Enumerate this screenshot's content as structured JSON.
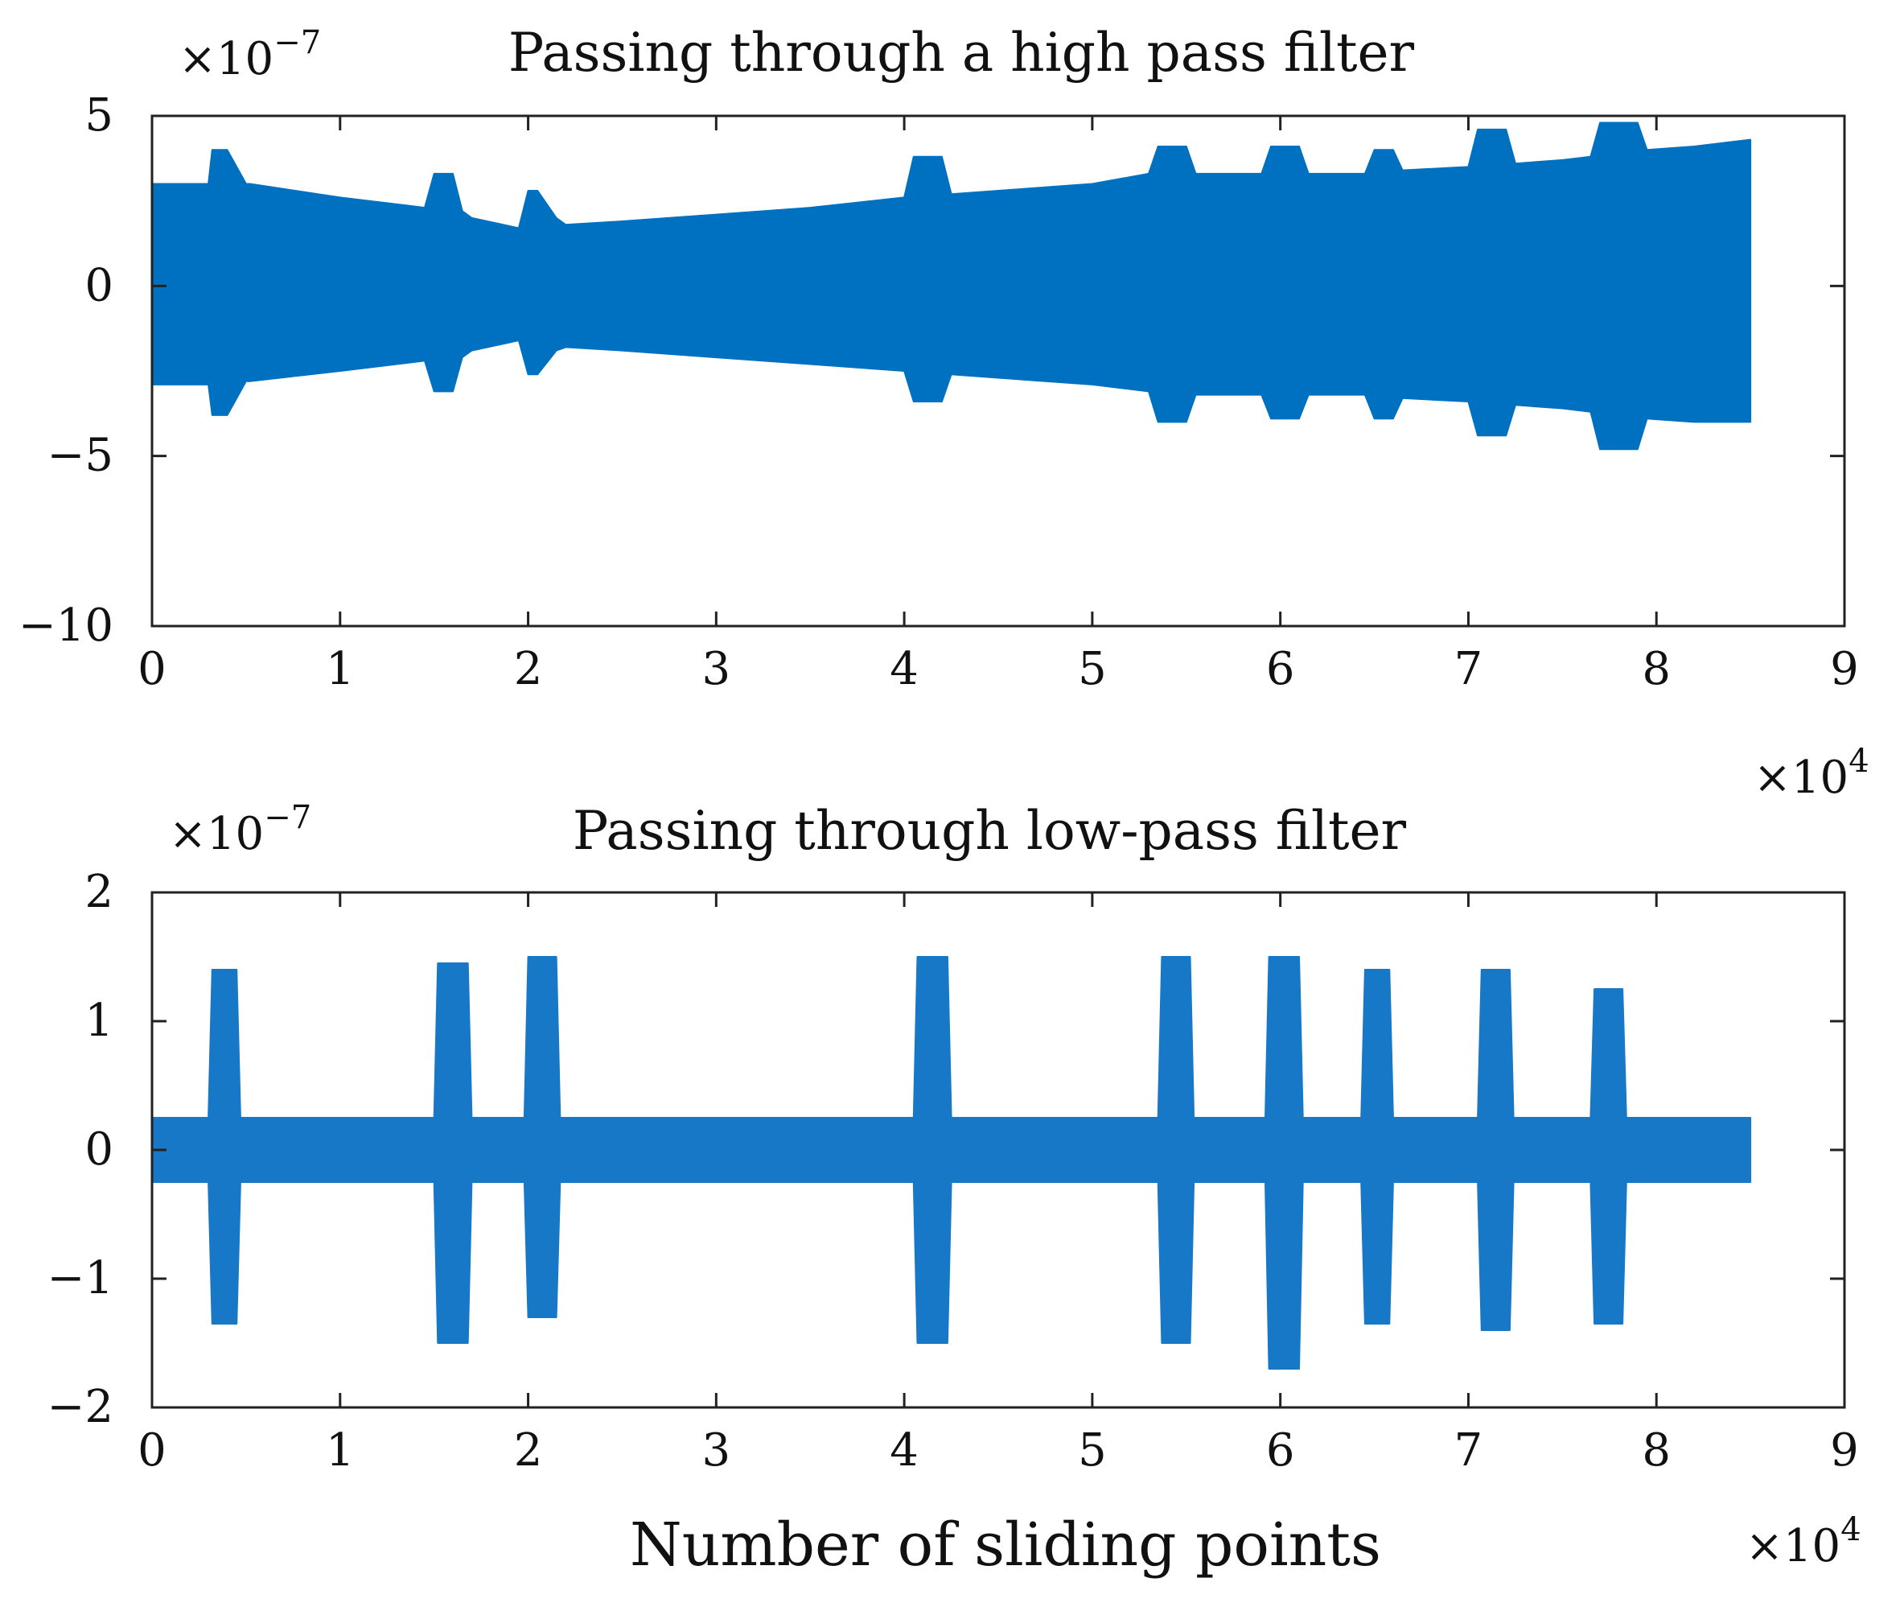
{
  "chart_data": [
    {
      "type": "area",
      "title": "Passing through a high pass filter",
      "xlabel": "",
      "ylabel": "",
      "xlim": [
        0,
        9
      ],
      "ylim": [
        -10,
        5
      ],
      "x_ticks": [
        "0",
        "1",
        "2",
        "3",
        "4",
        "5",
        "6",
        "7",
        "8",
        "9"
      ],
      "y_ticks": [
        "5",
        "0",
        "−5",
        "−10"
      ],
      "x_multiplier": {
        "base": "×10",
        "exp": "4"
      },
      "y_multiplier": {
        "base": "×10",
        "exp": "−7"
      },
      "color": "#0070C0",
      "series": [
        {
          "x": [
            0.0,
            0.3,
            0.32,
            0.4,
            0.5,
            0.52,
            1.0,
            1.45,
            1.5,
            1.6,
            1.65,
            1.7,
            1.95,
            2.0,
            2.05,
            2.15,
            2.2,
            2.5,
            3.0,
            3.5,
            4.0,
            4.05,
            4.2,
            4.25,
            4.5,
            5.0,
            5.3,
            5.35,
            5.5,
            5.55,
            5.9,
            5.95,
            6.1,
            6.15,
            6.45,
            6.5,
            6.6,
            6.65,
            7.0,
            7.05,
            7.2,
            7.25,
            7.5,
            7.65,
            7.7,
            7.9,
            7.95,
            8.2,
            8.5
          ],
          "upper": [
            3.0,
            3.0,
            4.0,
            4.0,
            3.0,
            3.0,
            2.6,
            2.3,
            3.3,
            3.3,
            2.2,
            2.0,
            1.7,
            2.8,
            2.8,
            2.0,
            1.8,
            1.9,
            2.1,
            2.3,
            2.6,
            3.8,
            3.8,
            2.7,
            2.8,
            3.0,
            3.3,
            4.1,
            4.1,
            3.3,
            3.3,
            4.1,
            4.1,
            3.3,
            3.3,
            4.0,
            4.0,
            3.4,
            3.5,
            4.6,
            4.6,
            3.6,
            3.7,
            3.8,
            4.8,
            4.8,
            4.0,
            4.1,
            4.3
          ],
          "lower": [
            -2.9,
            -2.9,
            -3.8,
            -3.8,
            -2.8,
            -2.8,
            -2.5,
            -2.2,
            -3.1,
            -3.1,
            -2.1,
            -1.9,
            -1.6,
            -2.6,
            -2.6,
            -1.9,
            -1.8,
            -1.9,
            -2.1,
            -2.3,
            -2.5,
            -3.4,
            -3.4,
            -2.6,
            -2.7,
            -2.9,
            -3.1,
            -4.0,
            -4.0,
            -3.2,
            -3.2,
            -3.9,
            -3.9,
            -3.2,
            -3.2,
            -3.9,
            -3.9,
            -3.3,
            -3.4,
            -4.4,
            -4.4,
            -3.5,
            -3.6,
            -3.7,
            -4.8,
            -4.8,
            -3.9,
            -4.0,
            -4.0
          ]
        }
      ]
    },
    {
      "type": "area",
      "title": "Passing through low-pass filter",
      "xlabel": "Number of sliding points",
      "ylabel": "",
      "xlim": [
        0,
        9
      ],
      "ylim": [
        -2,
        2
      ],
      "x_ticks": [
        "0",
        "1",
        "2",
        "3",
        "4",
        "5",
        "6",
        "7",
        "8",
        "9"
      ],
      "y_ticks": [
        "2",
        "1",
        "0",
        "−1",
        "−2"
      ],
      "x_multiplier": {
        "base": "×10",
        "exp": "4"
      },
      "y_multiplier": {
        "base": "×10",
        "exp": "−7"
      },
      "color": "#1878C8",
      "series": [
        {
          "x": [
            0.0,
            0.3,
            0.32,
            0.45,
            0.47,
            1.5,
            1.52,
            1.68,
            1.7,
            1.98,
            2.0,
            2.15,
            2.17,
            4.05,
            4.07,
            4.23,
            4.25,
            5.35,
            5.37,
            5.52,
            5.54,
            5.92,
            5.94,
            6.1,
            6.12,
            6.43,
            6.45,
            6.58,
            6.6,
            7.05,
            7.07,
            7.22,
            7.24,
            7.65,
            7.67,
            7.82,
            7.84,
            8.5
          ],
          "upper": [
            0.25,
            0.25,
            1.4,
            1.4,
            0.25,
            0.25,
            1.45,
            1.45,
            0.25,
            0.25,
            1.5,
            1.5,
            0.25,
            0.25,
            1.5,
            1.5,
            0.25,
            0.25,
            1.5,
            1.5,
            0.25,
            0.25,
            1.5,
            1.5,
            0.25,
            0.25,
            1.4,
            1.4,
            0.25,
            0.25,
            1.4,
            1.4,
            0.25,
            0.25,
            1.25,
            1.25,
            0.25,
            0.25
          ],
          "lower": [
            -0.25,
            -0.25,
            -1.35,
            -1.35,
            -0.25,
            -0.25,
            -1.5,
            -1.5,
            -0.25,
            -0.25,
            -1.3,
            -1.3,
            -0.25,
            -0.25,
            -1.5,
            -1.5,
            -0.25,
            -0.25,
            -1.5,
            -1.5,
            -0.25,
            -0.25,
            -1.7,
            -1.7,
            -0.25,
            -0.25,
            -1.35,
            -1.35,
            -0.25,
            -0.25,
            -1.4,
            -1.4,
            -0.25,
            -0.25,
            -1.35,
            -1.35,
            -0.25,
            -0.25
          ]
        }
      ]
    }
  ]
}
